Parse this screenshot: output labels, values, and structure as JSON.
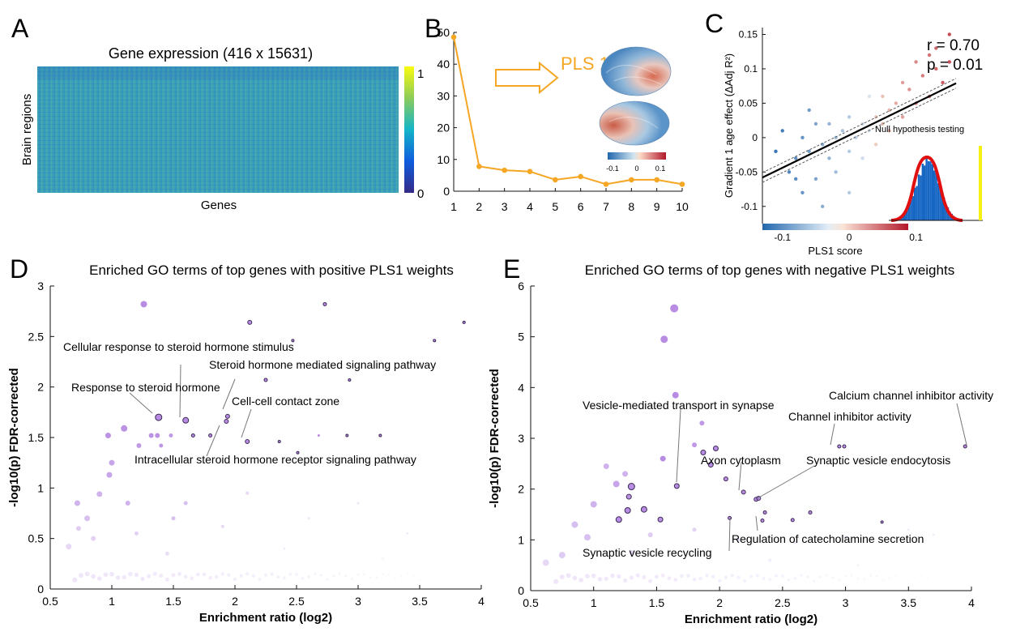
{
  "panels": {
    "A": {
      "letter": "A",
      "title": "Gene expression (416 x 15631)",
      "ylabel": "Brain regions",
      "xlabel": "Genes",
      "colorbar_ticks": [
        "1",
        "0"
      ]
    },
    "B": {
      "letter": "B",
      "arrow_label": "PLS 1",
      "brain_colorbar_ticks": [
        "-0.1",
        "0",
        "0.1"
      ]
    },
    "C": {
      "letter": "C",
      "stat_r": "r = 0.70",
      "stat_p": "p = 0.01",
      "inset_title": "Null hypothesis testing"
    },
    "D": {
      "letter": "D",
      "annotations": [
        "Cellular response to steroid hormone stimulus",
        "Steroid hormone mediated signaling pathway",
        "Response to steroid hormone",
        "Cell-cell contact zone",
        "Intracellular steroid hormone receptor signaling pathway"
      ]
    },
    "E": {
      "letter": "E",
      "annotations": [
        "Calcium channel inhibitor activity",
        "Vesicle-mediated transport in synapse",
        "Channel inhibitor activity",
        "Axon cytoplasm",
        "Synaptic vesicle endocytosis",
        "Regulation of catecholamine secretion",
        "Synaptic vesicle recycling"
      ]
    }
  },
  "colors": {
    "orange": "#f5a623",
    "go_purple": "#b07fe0",
    "highlight_edge": "#3d2a55",
    "scatter_blue": "#1f6fb4",
    "scatter_red": "#c0362c",
    "null_red": "#e01010",
    "null_yellow": "#f5ef12",
    "hist_blue": "#1666c4"
  },
  "chart_data": [
    {
      "type": "line",
      "panel": "B",
      "x": [
        1,
        2,
        3,
        4,
        5,
        6,
        7,
        8,
        9,
        10
      ],
      "y": [
        48.5,
        7.8,
        6.6,
        6.2,
        3.6,
        4.6,
        2.2,
        3.6,
        3.6,
        2.2
      ],
      "xlim": [
        1,
        10
      ],
      "ylim": [
        0,
        50
      ],
      "xticks": [
        "1",
        "2",
        "3",
        "4",
        "5",
        "6",
        "7",
        "8",
        "9",
        "10"
      ],
      "yticks": [
        "0",
        "10",
        "20",
        "30",
        "40",
        "50"
      ]
    },
    {
      "type": "scatter",
      "panel": "C",
      "xlabel": "PLS1 score",
      "ylabel": "Gradient 1 age effect (ΔAdj R²)",
      "xlim": [
        -0.13,
        0.2
      ],
      "ylim": [
        -0.125,
        0.16
      ],
      "xticks": [
        "-0.1",
        "0",
        "0.1"
      ],
      "yticks": [
        "-0.1",
        "-0.05",
        "0",
        "0.05",
        "0.1",
        "0.15"
      ],
      "fit": {
        "x": [
          -0.13,
          0.16
        ],
        "y": [
          -0.058,
          0.079
        ]
      },
      "points": [
        [
          -0.11,
          -0.02
        ],
        [
          -0.1,
          0.01
        ],
        [
          -0.09,
          -0.05
        ],
        [
          -0.08,
          -0.03
        ],
        [
          -0.07,
          0.0
        ],
        [
          -0.07,
          -0.08
        ],
        [
          -0.06,
          -0.02
        ],
        [
          -0.05,
          0.02
        ],
        [
          -0.05,
          -0.06
        ],
        [
          -0.04,
          -0.01
        ],
        [
          -0.04,
          -0.1
        ],
        [
          -0.03,
          0.02
        ],
        [
          -0.03,
          -0.03
        ],
        [
          -0.02,
          0.0
        ],
        [
          -0.02,
          -0.05
        ],
        [
          -0.01,
          0.01
        ],
        [
          0.0,
          -0.02
        ],
        [
          0.0,
          0.03
        ],
        [
          0.01,
          0.0
        ],
        [
          0.02,
          0.02
        ],
        [
          0.02,
          -0.03
        ],
        [
          0.03,
          0.01
        ],
        [
          0.04,
          0.03
        ],
        [
          0.05,
          0.02
        ],
        [
          0.05,
          0.06
        ],
        [
          0.06,
          0.04
        ],
        [
          0.07,
          0.05
        ],
        [
          0.08,
          0.03
        ],
        [
          0.09,
          0.07
        ],
        [
          0.1,
          0.05
        ],
        [
          0.11,
          0.09
        ],
        [
          0.12,
          0.06
        ],
        [
          0.13,
          0.1
        ],
        [
          0.13,
          0.13
        ],
        [
          0.14,
          0.08
        ],
        [
          0.15,
          0.11
        ],
        [
          0.15,
          0.15
        ],
        [
          0.12,
          0.12
        ],
        [
          0.1,
          0.11
        ],
        [
          0.08,
          0.08
        ],
        [
          0.06,
          0.01
        ],
        [
          0.04,
          -0.01
        ],
        [
          -0.08,
          -0.06
        ],
        [
          -0.06,
          0.04
        ],
        [
          0.0,
          -0.08
        ],
        [
          0.03,
          0.06
        ]
      ]
    },
    {
      "type": "scatter",
      "panel": "D",
      "title": "Enriched GO terms of top genes with positive PLS1 weights",
      "xlabel": "Enrichment ratio (log2)",
      "ylabel": "-log10(p) FDR-corrected",
      "xlim": [
        0.5,
        4
      ],
      "ylim": [
        0,
        3
      ],
      "xticks": [
        "0.5",
        "1",
        "1.5",
        "2",
        "2.5",
        "3",
        "3.5",
        "4"
      ],
      "yticks": [
        "0",
        "0.5",
        "1",
        "1.5",
        "2",
        "2.5",
        "3"
      ],
      "points": [
        [
          1.26,
          2.82,
          4,
          0.9,
          0
        ],
        [
          2.12,
          2.64,
          2.5,
          0.9,
          1
        ],
        [
          2.73,
          2.82,
          2,
          0.9,
          1
        ],
        [
          3.86,
          2.64,
          1.5,
          0.9,
          1
        ],
        [
          3.62,
          2.46,
          1.5,
          0.9,
          1
        ],
        [
          2.47,
          2.46,
          1.5,
          0.9,
          1
        ],
        [
          2.25,
          2.07,
          2,
          0.9,
          1
        ],
        [
          2.93,
          2.07,
          1.5,
          0.9,
          1
        ],
        [
          1.38,
          1.7,
          4,
          0.9,
          1
        ],
        [
          1.6,
          1.67,
          3.5,
          0.9,
          1
        ],
        [
          1.94,
          1.71,
          2.5,
          0.9,
          1
        ],
        [
          1.93,
          1.66,
          2.5,
          0.9,
          1
        ],
        [
          2.1,
          1.46,
          2.5,
          0.9,
          1
        ],
        [
          1.66,
          1.52,
          2,
          0.9,
          1
        ],
        [
          1.8,
          1.52,
          2,
          0.9,
          1
        ],
        [
          2.36,
          1.46,
          1.5,
          0.9,
          1
        ],
        [
          2.91,
          1.52,
          1.5,
          0.9,
          1
        ],
        [
          3.18,
          1.52,
          1.5,
          0.9,
          1
        ],
        [
          2.51,
          1.35,
          1.5,
          0.9,
          1
        ],
        [
          2.68,
          1.52,
          1.5,
          0.9,
          0
        ],
        [
          1.1,
          1.59,
          4,
          0.85,
          0
        ],
        [
          0.97,
          1.52,
          3.5,
          0.85,
          0
        ],
        [
          1.32,
          1.52,
          3,
          0.85,
          0
        ],
        [
          1.37,
          1.52,
          3,
          0.85,
          0
        ],
        [
          1.48,
          1.52,
          2.5,
          0.8,
          0
        ],
        [
          1.22,
          1.42,
          3,
          0.8,
          0
        ],
        [
          1.4,
          1.42,
          2.5,
          0.8,
          0
        ],
        [
          1.0,
          1.25,
          3.5,
          0.7,
          0
        ],
        [
          0.98,
          1.13,
          3.5,
          0.7,
          0
        ],
        [
          0.9,
          0.94,
          3.5,
          0.6,
          0
        ],
        [
          0.72,
          0.85,
          3.5,
          0.6,
          0
        ],
        [
          1.13,
          0.85,
          3,
          0.6,
          0
        ],
        [
          0.8,
          0.7,
          3.5,
          0.5,
          0
        ],
        [
          1.5,
          0.7,
          2.5,
          0.5,
          0
        ],
        [
          1.6,
          0.85,
          2.5,
          0.5,
          0
        ],
        [
          0.73,
          0.6,
          3,
          0.4,
          0
        ],
        [
          0.85,
          0.5,
          3,
          0.35,
          0
        ],
        [
          0.65,
          0.42,
          3.5,
          0.3,
          0
        ],
        [
          1.2,
          0.55,
          2.5,
          0.35,
          0
        ],
        [
          1.9,
          0.62,
          2,
          0.3,
          0
        ],
        [
          2.1,
          0.95,
          2,
          0.3,
          0
        ],
        [
          2.6,
          0.7,
          1.5,
          0.2,
          0
        ],
        [
          3.0,
          0.85,
          1.5,
          0.2,
          0
        ],
        [
          3.4,
          0.55,
          1.5,
          0.15,
          0
        ],
        [
          1.45,
          0.35,
          2.5,
          0.25,
          0
        ],
        [
          2.4,
          0.4,
          1.5,
          0.15,
          0
        ],
        [
          3.2,
          0.3,
          1.5,
          0.1,
          0
        ]
      ]
    },
    {
      "type": "scatter",
      "panel": "E",
      "title": "Enriched GO terms of top genes with negative PLS1 weights",
      "xlabel": "Enrichment ratio (log2)",
      "ylabel": "-log10(p) FDR-corrected",
      "xlim": [
        0.5,
        4
      ],
      "ylim": [
        0,
        6
      ],
      "xticks": [
        "0.5",
        "1",
        "1.5",
        "2",
        "2.5",
        "3",
        "3.5",
        "4"
      ],
      "yticks": [
        "0",
        "1",
        "2",
        "3",
        "4",
        "5",
        "6"
      ],
      "points": [
        [
          1.64,
          5.56,
          5,
          0.9,
          0
        ],
        [
          1.56,
          4.95,
          4.5,
          0.9,
          0
        ],
        [
          1.65,
          3.85,
          4,
          0.9,
          0
        ],
        [
          1.55,
          2.6,
          3.5,
          0.9,
          0
        ],
        [
          1.66,
          2.06,
          3,
          0.9,
          1
        ],
        [
          1.87,
          2.72,
          3,
          0.9,
          1
        ],
        [
          1.97,
          2.8,
          3,
          0.9,
          1
        ],
        [
          1.93,
          2.48,
          3,
          0.9,
          1
        ],
        [
          2.05,
          2.2,
          2.5,
          0.9,
          1
        ],
        [
          2.19,
          1.94,
          2.5,
          0.9,
          1
        ],
        [
          2.29,
          1.8,
          2.5,
          0.9,
          1
        ],
        [
          2.31,
          1.82,
          2.5,
          0.9,
          1
        ],
        [
          2.99,
          2.84,
          2,
          0.9,
          1
        ],
        [
          2.95,
          2.84,
          2,
          0.9,
          1
        ],
        [
          3.95,
          2.84,
          2,
          0.9,
          1
        ],
        [
          2.08,
          1.43,
          2,
          0.9,
          1
        ],
        [
          2.34,
          1.38,
          2,
          0.9,
          1
        ],
        [
          2.58,
          1.39,
          2,
          0.9,
          1
        ],
        [
          2.72,
          1.54,
          2,
          0.9,
          1
        ],
        [
          3.29,
          1.35,
          1.5,
          0.9,
          1
        ],
        [
          1.3,
          2.05,
          4,
          0.9,
          1
        ],
        [
          1.27,
          1.58,
          3.5,
          0.9,
          1
        ],
        [
          1.4,
          1.6,
          3.5,
          0.9,
          1
        ],
        [
          1.2,
          1.4,
          3.5,
          0.9,
          1
        ],
        [
          1.28,
          1.85,
          3,
          0.85,
          1
        ],
        [
          1.53,
          1.4,
          3,
          0.85,
          1
        ],
        [
          2.36,
          1.54,
          2,
          0.9,
          1
        ],
        [
          1.8,
          2.87,
          3,
          0.8,
          0
        ],
        [
          1.86,
          3.3,
          3,
          0.8,
          0
        ],
        [
          1.18,
          2.1,
          4,
          0.7,
          0
        ],
        [
          1.0,
          1.7,
          4,
          0.6,
          0
        ],
        [
          1.1,
          2.45,
          3.5,
          0.6,
          0
        ],
        [
          1.25,
          2.3,
          3.5,
          0.6,
          0
        ],
        [
          0.85,
          1.3,
          4,
          0.5,
          0
        ],
        [
          0.95,
          1.05,
          4,
          0.5,
          0
        ],
        [
          0.75,
          0.7,
          4,
          0.4,
          0
        ],
        [
          0.62,
          0.55,
          4,
          0.3,
          0
        ],
        [
          1.45,
          1.1,
          3,
          0.4,
          0
        ],
        [
          1.8,
          1.2,
          2.5,
          0.35,
          0
        ],
        [
          2.15,
          1.0,
          2,
          0.3,
          0
        ],
        [
          2.6,
          0.95,
          2,
          0.2,
          0
        ],
        [
          3.0,
          1.05,
          2,
          0.2,
          0
        ],
        [
          3.5,
          1.2,
          1.5,
          0.15,
          0
        ],
        [
          3.7,
          1.1,
          1.5,
          0.15,
          0
        ],
        [
          1.3,
          0.75,
          3,
          0.3,
          0
        ],
        [
          2.4,
          0.6,
          2,
          0.15,
          0
        ],
        [
          3.1,
          0.5,
          1.5,
          0.1,
          0
        ]
      ]
    }
  ]
}
